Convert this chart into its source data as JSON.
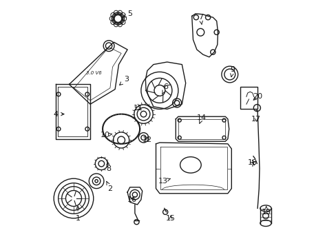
{
  "background_color": "#ffffff",
  "line_color": "#1a1a1a",
  "lw": 1.0,
  "font_size": 8,
  "labels": {
    "1": [
      0.135,
      0.88,
      0.135,
      0.82
    ],
    "2": [
      0.265,
      0.76,
      0.25,
      0.73
    ],
    "3": [
      0.33,
      0.32,
      0.295,
      0.35
    ],
    "4": [
      0.045,
      0.46,
      0.09,
      0.46
    ],
    "5": [
      0.345,
      0.055,
      0.315,
      0.07
    ],
    "6": [
      0.49,
      0.35,
      0.475,
      0.38
    ],
    "7": [
      0.63,
      0.07,
      0.635,
      0.1
    ],
    "8": [
      0.258,
      0.68,
      0.255,
      0.65
    ],
    "9": [
      0.76,
      0.28,
      0.752,
      0.32
    ],
    "10": [
      0.245,
      0.545,
      0.275,
      0.54
    ],
    "11": [
      0.378,
      0.435,
      0.4,
      0.44
    ],
    "12": [
      0.415,
      0.565,
      0.415,
      0.55
    ],
    "13": [
      0.48,
      0.73,
      0.51,
      0.72
    ],
    "14": [
      0.635,
      0.475,
      0.625,
      0.5
    ],
    "15": [
      0.51,
      0.88,
      0.51,
      0.86
    ],
    "16": [
      0.355,
      0.805,
      0.365,
      0.785
    ],
    "17": [
      0.855,
      0.48,
      0.858,
      0.5
    ],
    "18": [
      0.84,
      0.655,
      0.845,
      0.66
    ],
    "19": [
      0.895,
      0.855,
      0.895,
      0.83
    ],
    "20": [
      0.86,
      0.39,
      0.835,
      0.41
    ]
  }
}
